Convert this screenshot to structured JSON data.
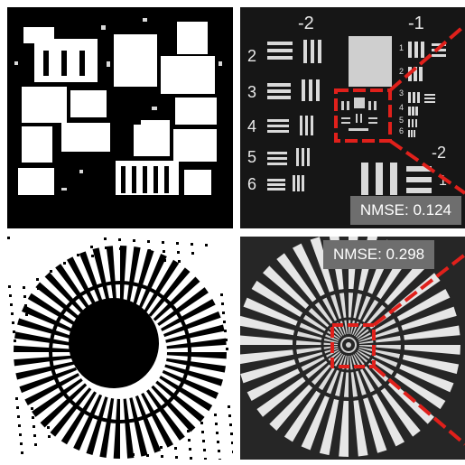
{
  "panels": [
    {
      "id": "tl"
    },
    {
      "id": "tr",
      "group_labels": {
        "g_minus2": "-2",
        "g_minus1": "-1",
        "g_minus2_small": "-2",
        "g_1": "1"
      },
      "element_labels": [
        "2",
        "3",
        "4",
        "5",
        "6"
      ],
      "small_labels": [
        "1",
        "2",
        "3",
        "4",
        "5",
        "6"
      ],
      "nmse_text": "NMSE: 0.124"
    },
    {
      "id": "bl"
    },
    {
      "id": "br",
      "nmse_text": "NMSE: 0.298"
    }
  ],
  "colors": {
    "highlight": "#e0201b",
    "badge": "#6e6e6e"
  }
}
